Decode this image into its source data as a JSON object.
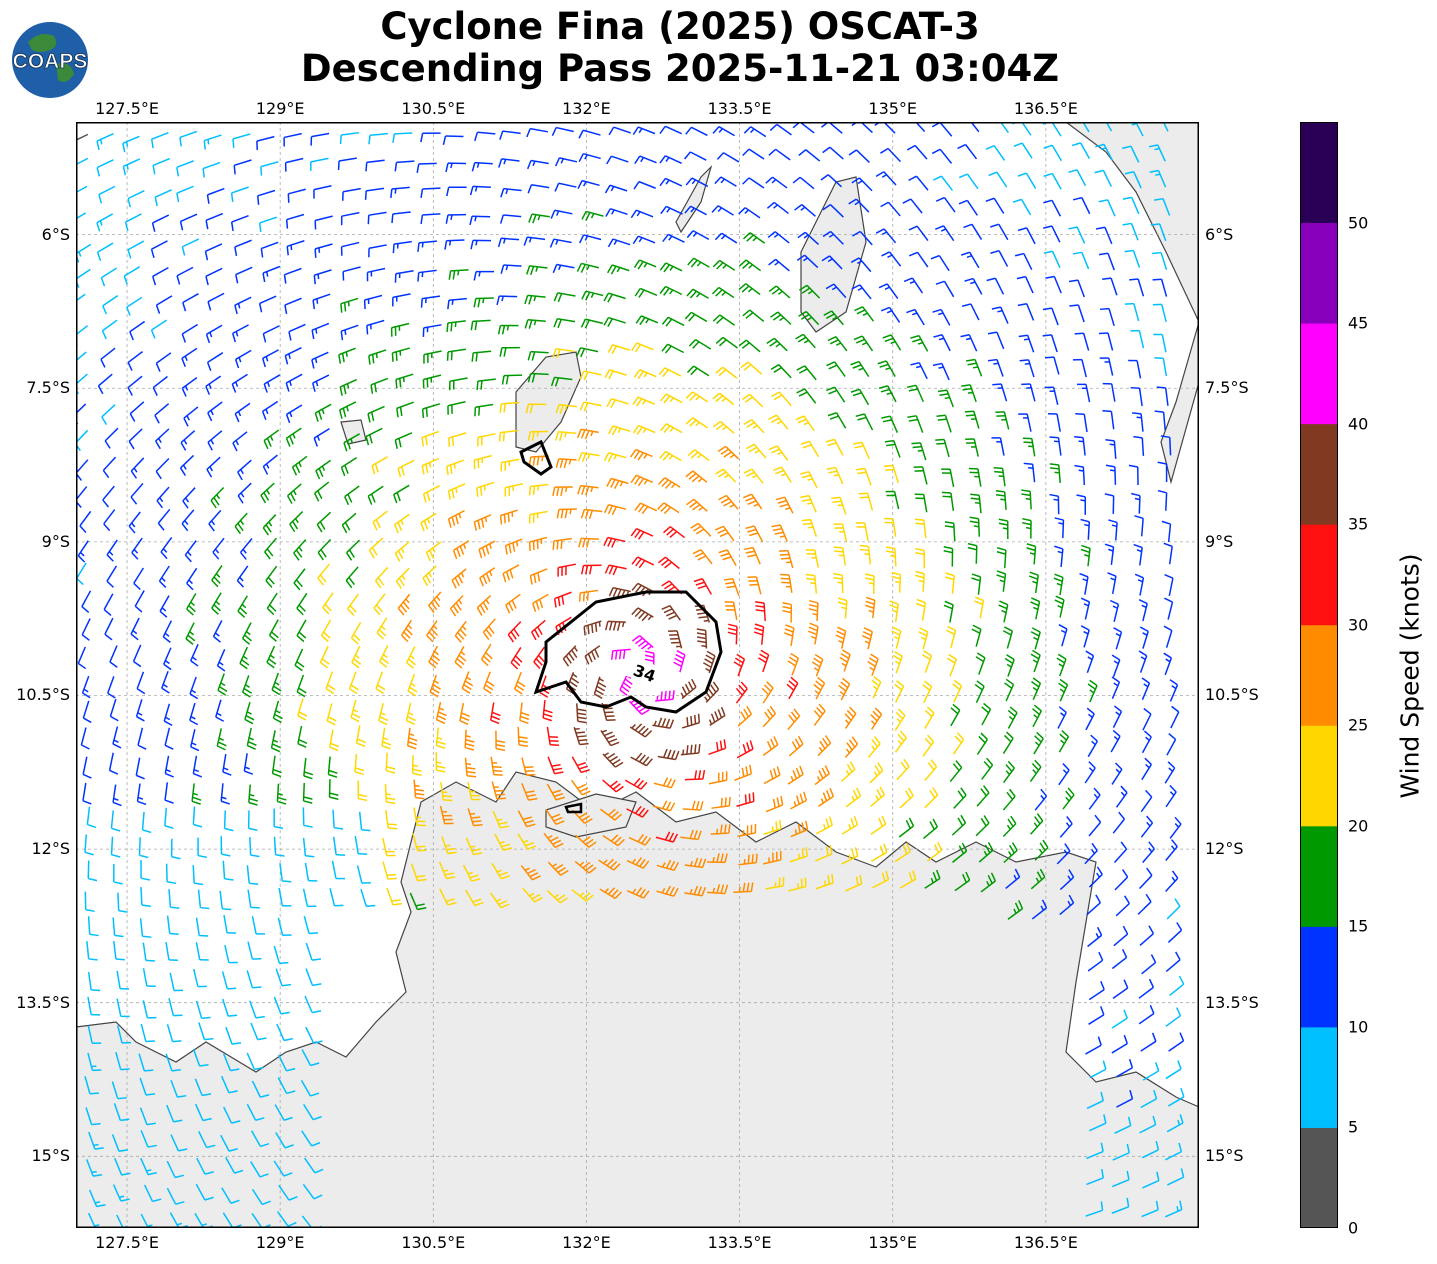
{
  "title": {
    "line1": "Cyclone Fina (2025) OSCAT-3",
    "line2": "Descending Pass 2025-11-21 03:04Z"
  },
  "logo": {
    "text": "COAPS"
  },
  "axes": {
    "lon_ticks": [
      "127.5°E",
      "129°E",
      "130.5°E",
      "132°E",
      "133.5°E",
      "135°E",
      "136.5°E"
    ],
    "lat_ticks": [
      "6°S",
      "7.5°S",
      "9°S",
      "10.5°S",
      "12°S",
      "13.5°S",
      "15°S"
    ],
    "lon_values": [
      127.5,
      129,
      130.5,
      132,
      133.5,
      135,
      136.5
    ],
    "lat_values": [
      -6,
      -7.5,
      -9,
      -10.5,
      -12,
      -13.5,
      -15
    ],
    "lon_range": [
      127.0,
      138.0
    ],
    "lat_range": [
      -15.7,
      -4.9
    ]
  },
  "storm_center": {
    "lon": 132.55,
    "lat": -10.3
  },
  "contour": {
    "label": "34"
  },
  "colorbar": {
    "title": "Wind Speed (knots)",
    "tick_labels": [
      "0",
      "5",
      "10",
      "15",
      "20",
      "25",
      "30",
      "35",
      "40",
      "45",
      "50"
    ],
    "bands": [
      {
        "min": 0,
        "max": 5,
        "color": "#555555"
      },
      {
        "min": 5,
        "max": 10,
        "color": "#00bfff"
      },
      {
        "min": 10,
        "max": 15,
        "color": "#0033ff"
      },
      {
        "min": 15,
        "max": 20,
        "color": "#009900"
      },
      {
        "min": 20,
        "max": 25,
        "color": "#ffd700"
      },
      {
        "min": 25,
        "max": 30,
        "color": "#ff8c00"
      },
      {
        "min": 30,
        "max": 35,
        "color": "#ff1010"
      },
      {
        "min": 35,
        "max": 40,
        "color": "#803a22"
      },
      {
        "min": 40,
        "max": 45,
        "color": "#ff00ff"
      },
      {
        "min": 45,
        "max": 50,
        "color": "#8800bb"
      },
      {
        "min": 50,
        "max": 55,
        "color": "#2a0057"
      }
    ]
  }
}
